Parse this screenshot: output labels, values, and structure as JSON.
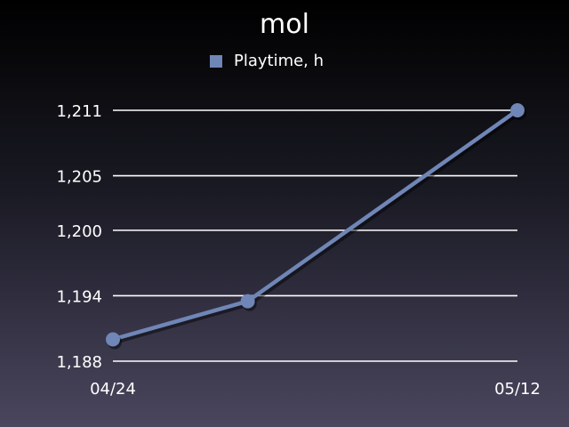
{
  "chart_data": {
    "type": "line",
    "title": "mol",
    "xlabel": "",
    "ylabel": "",
    "categories": [
      "04/24",
      "05/12"
    ],
    "x": [
      "04/24",
      "04/30",
      "05/12"
    ],
    "x_tick_labels": [
      "04/24",
      "05/12"
    ],
    "y_tick_labels": [
      "1,188",
      "1,194",
      "1,200",
      "1,205",
      "1,211"
    ],
    "ylim": [
      1188,
      1211
    ],
    "grid": true,
    "legend_position": "top-center",
    "series": [
      {
        "name": "Playtime, h",
        "values": [
          1190.0,
          1193.5,
          1211
        ],
        "color": "#6f86b6"
      }
    ]
  }
}
